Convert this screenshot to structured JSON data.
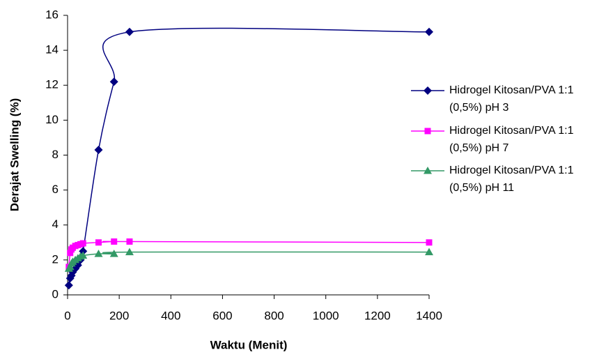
{
  "chart_data": {
    "type": "line",
    "x_label": "Waktu (Menit)",
    "y_label": "Derajat Swelling (%)",
    "x": [
      5,
      10,
      15,
      20,
      30,
      40,
      50,
      60,
      120,
      180,
      240,
      1400
    ],
    "series": [
      {
        "name": "Hidrogel Kitosan/PVA 1:1 (0,5%) pH 3",
        "color": "#000080",
        "marker": "diamond",
        "values": [
          0.55,
          0.95,
          1.1,
          1.3,
          1.5,
          1.7,
          2.0,
          2.5,
          8.3,
          12.2,
          15.05,
          15.05
        ]
      },
      {
        "name": "Hidrogel Kitosan/PVA 1:1 (0,5%) pH 7",
        "color": "#ff00ff",
        "marker": "square",
        "values": [
          1.6,
          2.4,
          2.6,
          2.7,
          2.8,
          2.85,
          2.9,
          2.95,
          3.0,
          3.05,
          3.05,
          3.0
        ]
      },
      {
        "name": "Hidrogel Kitosan/PVA 1:1 (0,5%) pH 11",
        "color": "#339966",
        "marker": "triangle",
        "values": [
          1.5,
          1.6,
          1.8,
          1.9,
          2.0,
          2.1,
          2.2,
          2.25,
          2.35,
          2.35,
          2.45,
          2.45
        ]
      }
    ],
    "xlim": [
      0,
      1400
    ],
    "xticks": [
      0,
      200,
      400,
      600,
      800,
      1000,
      1200,
      1400
    ],
    "ylim": [
      0,
      16
    ],
    "yticks": [
      0,
      2,
      4,
      6,
      8,
      10,
      12,
      14,
      16
    ],
    "legend": "right"
  }
}
